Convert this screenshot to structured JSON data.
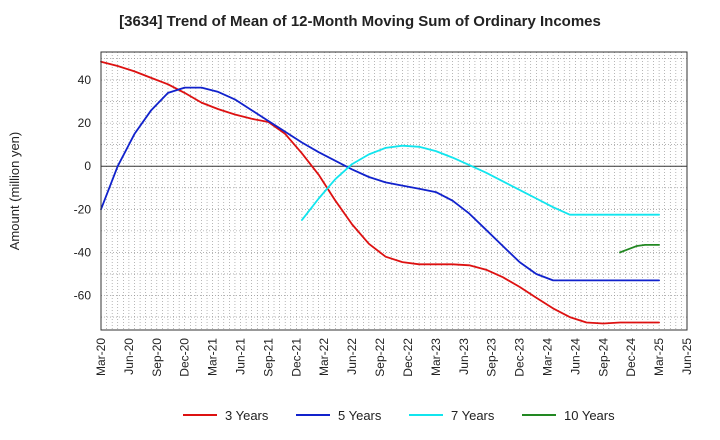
{
  "chart_data": {
    "type": "line",
    "title": "[3634]  Trend of Mean of 12-Month Moving Sum of Ordinary Incomes",
    "ylabel": "Amount (million yen)",
    "xlabel": "",
    "ylim": [
      -76,
      53
    ],
    "yticks": [
      40,
      20,
      0,
      -20,
      -40,
      -60
    ],
    "xlim": [
      0,
      105
    ],
    "x_tick_labels": [
      "Mar-20",
      "Jun-20",
      "Sep-20",
      "Dec-20",
      "Mar-21",
      "Jun-21",
      "Sep-21",
      "Dec-21",
      "Mar-22",
      "Jun-22",
      "Sep-22",
      "Dec-22",
      "Mar-23",
      "Jun-23",
      "Sep-23",
      "Dec-23",
      "Mar-24",
      "Jun-24",
      "Sep-24",
      "Dec-24",
      "Mar-25",
      "Jun-25"
    ],
    "grid": true,
    "legend_position": "bottom",
    "series": [
      {
        "name": "3 Years",
        "color": "#dd1111",
        "x": [
          0,
          3,
          6,
          9,
          12,
          15,
          18,
          21,
          24,
          27,
          30,
          33,
          36,
          39,
          42,
          45,
          48,
          51,
          54,
          57,
          60,
          63,
          66,
          69,
          72,
          75,
          78,
          81,
          84,
          87,
          90,
          93,
          96,
          99,
          100
        ],
        "values": [
          48.5,
          46.5,
          44,
          41,
          38,
          34,
          29.5,
          26.5,
          24,
          22,
          20.5,
          15,
          6,
          -4,
          -16,
          -27,
          -36,
          -42,
          -44.5,
          -45.5,
          -45.5,
          -45.5,
          -46,
          -48,
          -51.5,
          -56,
          -61,
          -66,
          -70,
          -72.5,
          -73,
          -72.5,
          -72.5,
          -72.5,
          -72.5
        ]
      },
      {
        "name": "5 Years",
        "color": "#1122cc",
        "x": [
          0,
          3,
          6,
          9,
          12,
          15,
          18,
          21,
          24,
          27,
          30,
          33,
          36,
          39,
          42,
          45,
          48,
          51,
          54,
          57,
          60,
          63,
          66,
          69,
          72,
          75,
          78,
          81,
          84,
          87,
          90,
          93,
          96,
          99,
          100
        ],
        "values": [
          -20,
          0,
          15,
          26,
          34,
          36.5,
          36.5,
          34.5,
          31,
          26,
          21,
          16,
          11,
          6.5,
          2.5,
          -1.5,
          -5,
          -7.5,
          -9,
          -10.5,
          -12,
          -16,
          -22,
          -29.5,
          -37,
          -44.5,
          -50,
          -53,
          -53,
          -53,
          -53,
          -53,
          -53,
          -53,
          -53
        ]
      },
      {
        "name": "7 Years",
        "color": "#11e5ee",
        "x": [
          36,
          39,
          42,
          45,
          48,
          51,
          54,
          57,
          60,
          63,
          66,
          69,
          72,
          75,
          78,
          81,
          84,
          87,
          90,
          93,
          96,
          99,
          100
        ],
        "values": [
          -25,
          -15,
          -6,
          1,
          5.5,
          8.5,
          9.5,
          9,
          7,
          4,
          0.5,
          -3,
          -7,
          -11,
          -15,
          -19,
          -22.5,
          -22.5,
          -22.5,
          -22.5,
          -22.5,
          -22.5,
          -22.5
        ]
      },
      {
        "name": "10 Years",
        "color": "#228822",
        "x": [
          93,
          94.5,
          96,
          97.5,
          99,
          100
        ],
        "values": [
          -40,
          -38.5,
          -37,
          -36.5,
          -36.5,
          -36.5
        ]
      }
    ]
  }
}
